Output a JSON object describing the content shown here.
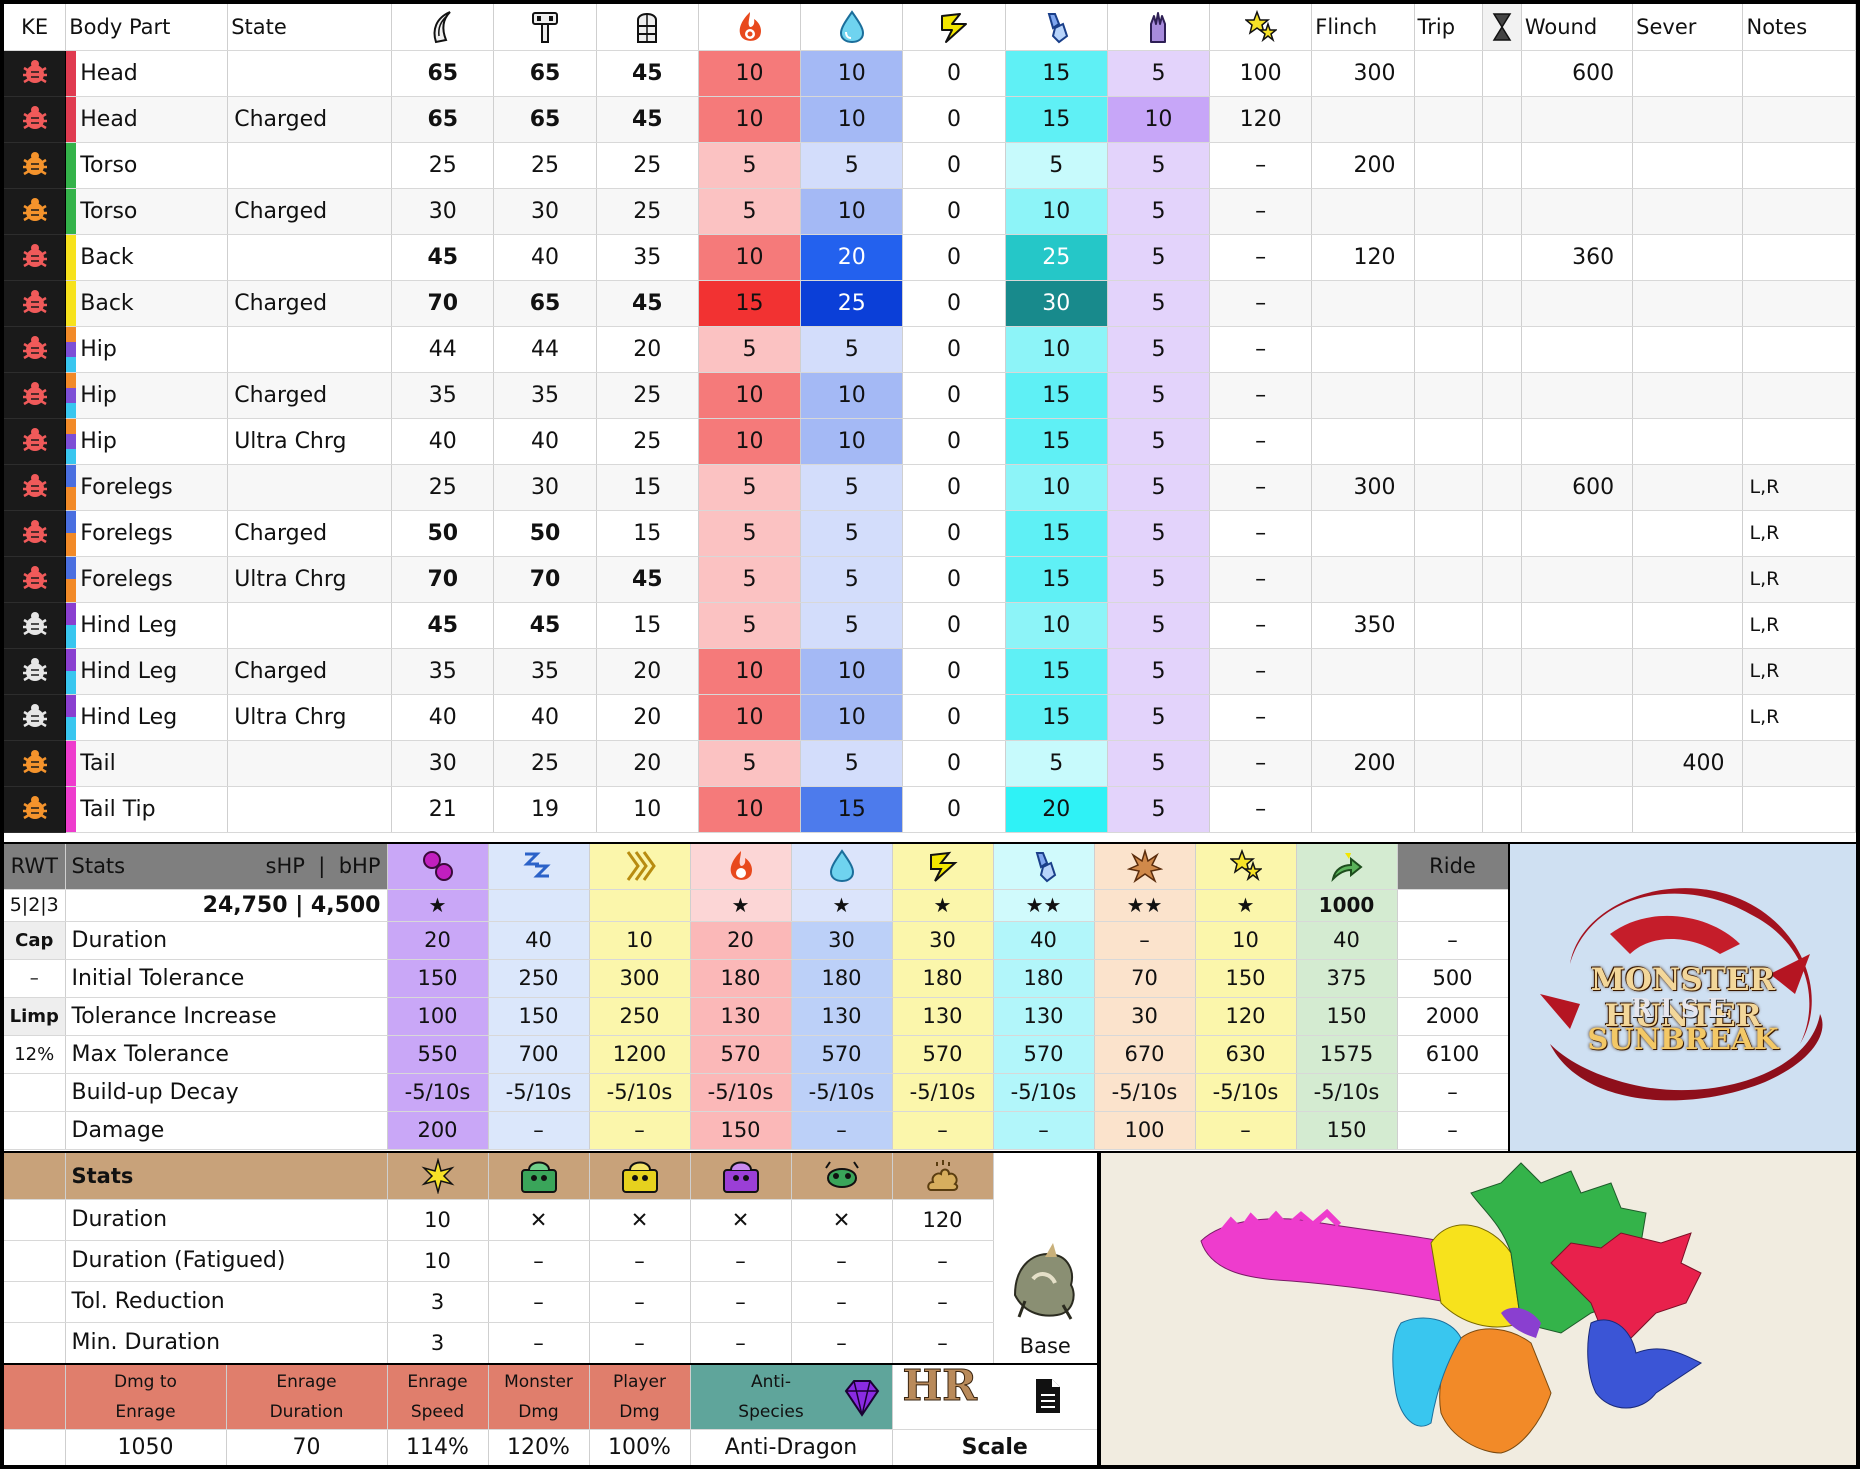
{
  "weakness": {
    "headers": {
      "ke": "KE",
      "part": "Body Part",
      "state": "State",
      "flinch": "Flinch",
      "trip": "Trip",
      "wound": "Wound",
      "sever": "Sever",
      "notes": "Notes"
    },
    "icon_names": [
      "sever-icon",
      "blunt-icon",
      "shot-icon",
      "fire-icon",
      "water-icon",
      "thunder-icon",
      "ice-icon",
      "dragon-icon",
      "stun-star-icon",
      "hourglass-icon"
    ],
    "rows": [
      {
        "part": "Head",
        "state": "",
        "v": [
          "65",
          "65",
          "45",
          "10",
          "10",
          "0",
          "15",
          "5",
          "100"
        ],
        "bold": [
          1,
          1,
          1
        ],
        "flinch": "300",
        "trip": "",
        "wound": "600",
        "sever": "",
        "notes": "",
        "bug": "red",
        "bar": [
          "#e03b50"
        ],
        "bg": [
          "#f57a7a",
          "#a4b9f5",
          "#fff",
          "#5ff0f5",
          "#e3d3fb"
        ]
      },
      {
        "part": "Head",
        "state": "Charged",
        "v": [
          "65",
          "65",
          "45",
          "10",
          "10",
          "0",
          "15",
          "10",
          "120"
        ],
        "bold": [
          1,
          1,
          1
        ],
        "flinch": "",
        "trip": "",
        "wound": "",
        "sever": "",
        "notes": "",
        "bug": "red",
        "bar": [
          "#e03b50"
        ],
        "bg": [
          "#f57a7a",
          "#a4b9f5",
          "#fff",
          "#5ff0f5",
          "#c7a6f8"
        ]
      },
      {
        "part": "Torso",
        "state": "",
        "v": [
          "25",
          "25",
          "25",
          "5",
          "5",
          "0",
          "5",
          "5",
          "–"
        ],
        "bold": [
          0,
          0,
          0
        ],
        "flinch": "200",
        "trip": "",
        "wound": "",
        "sever": "",
        "notes": "",
        "bug": "orange",
        "bar": [
          "#34b34a"
        ],
        "bg": [
          "#fbc2c2",
          "#d3ddfb",
          "#fff",
          "#c7fafc",
          "#e3d3fb"
        ]
      },
      {
        "part": "Torso",
        "state": "Charged",
        "v": [
          "30",
          "30",
          "25",
          "5",
          "10",
          "0",
          "10",
          "5",
          "–"
        ],
        "bold": [
          0,
          0,
          0
        ],
        "flinch": "",
        "trip": "",
        "wound": "",
        "sever": "",
        "notes": "",
        "bug": "orange",
        "bar": [
          "#34b34a"
        ],
        "bg": [
          "#fbc2c2",
          "#a4b9f5",
          "#fff",
          "#8df4f8",
          "#e3d3fb"
        ]
      },
      {
        "part": "Back",
        "state": "",
        "v": [
          "45",
          "40",
          "35",
          "10",
          "20",
          "0",
          "25",
          "5",
          "–"
        ],
        "bold": [
          1,
          0,
          0
        ],
        "flinch": "120",
        "trip": "",
        "wound": "360",
        "sever": "",
        "notes": "",
        "bug": "red",
        "bar": [
          "#f7e21c"
        ],
        "bg": [
          "#f57a7a",
          "#2361ee",
          "#fff",
          "#25c7c8",
          "#e3d3fb"
        ]
      },
      {
        "part": "Back",
        "state": "Charged",
        "v": [
          "70",
          "65",
          "45",
          "15",
          "25",
          "0",
          "30",
          "5",
          "–"
        ],
        "bold": [
          1,
          1,
          1
        ],
        "flinch": "",
        "trip": "",
        "wound": "",
        "sever": "",
        "notes": "",
        "bug": "red",
        "bar": [
          "#f7e21c"
        ],
        "bg": [
          "#f23232",
          "#0b3fd8",
          "#fff",
          "#188a8c",
          "#e3d3fb"
        ]
      },
      {
        "part": "Hip",
        "state": "",
        "v": [
          "44",
          "44",
          "20",
          "5",
          "5",
          "0",
          "10",
          "5",
          "–"
        ],
        "bold": [
          0,
          0,
          0
        ],
        "flinch": "",
        "trip": "",
        "wound": "",
        "sever": "",
        "notes": "",
        "bug": "red",
        "bar": [
          "#f28a28",
          "#7d4fd6",
          "#39c6ef"
        ],
        "bg": [
          "#fbc2c2",
          "#d3ddfb",
          "#fff",
          "#8df4f8",
          "#e3d3fb"
        ]
      },
      {
        "part": "Hip",
        "state": "Charged",
        "v": [
          "35",
          "35",
          "25",
          "10",
          "10",
          "0",
          "15",
          "5",
          "–"
        ],
        "bold": [
          0,
          0,
          0
        ],
        "flinch": "",
        "trip": "",
        "wound": "",
        "sever": "",
        "notes": "",
        "bug": "red",
        "bar": [
          "#f28a28",
          "#7d4fd6",
          "#39c6ef"
        ],
        "bg": [
          "#f57a7a",
          "#a4b9f5",
          "#fff",
          "#5ff0f5",
          "#e3d3fb"
        ]
      },
      {
        "part": "Hip",
        "state": "Ultra Chrg",
        "v": [
          "40",
          "40",
          "25",
          "10",
          "10",
          "0",
          "15",
          "5",
          "–"
        ],
        "bold": [
          0,
          0,
          0
        ],
        "flinch": "",
        "trip": "",
        "wound": "",
        "sever": "",
        "notes": "",
        "bug": "red",
        "bar": [
          "#f28a28",
          "#7d4fd6",
          "#39c6ef"
        ],
        "bg": [
          "#f57a7a",
          "#a4b9f5",
          "#fff",
          "#5ff0f5",
          "#e3d3fb"
        ]
      },
      {
        "part": "Forelegs",
        "state": "",
        "v": [
          "25",
          "30",
          "15",
          "5",
          "5",
          "0",
          "10",
          "5",
          "–"
        ],
        "bold": [
          0,
          0,
          0
        ],
        "flinch": "300",
        "trip": "",
        "wound": "600",
        "sever": "",
        "notes": "L,R",
        "bug": "red",
        "bar": [
          "#4a6fe0",
          "#f28a28"
        ],
        "bg": [
          "#fbc2c2",
          "#d3ddfb",
          "#fff",
          "#8df4f8",
          "#e3d3fb"
        ]
      },
      {
        "part": "Forelegs",
        "state": "Charged",
        "v": [
          "50",
          "50",
          "15",
          "5",
          "5",
          "0",
          "15",
          "5",
          "–"
        ],
        "bold": [
          1,
          1,
          0
        ],
        "flinch": "",
        "trip": "",
        "wound": "",
        "sever": "",
        "notes": "L,R",
        "bug": "red",
        "bar": [
          "#4a6fe0",
          "#f28a28"
        ],
        "bg": [
          "#fbc2c2",
          "#d3ddfb",
          "#fff",
          "#5ff0f5",
          "#e3d3fb"
        ]
      },
      {
        "part": "Forelegs",
        "state": "Ultra Chrg",
        "v": [
          "70",
          "70",
          "45",
          "5",
          "5",
          "0",
          "15",
          "5",
          "–"
        ],
        "bold": [
          1,
          1,
          1
        ],
        "flinch": "",
        "trip": "",
        "wound": "",
        "sever": "",
        "notes": "L,R",
        "bug": "red",
        "bar": [
          "#4a6fe0",
          "#f28a28"
        ],
        "bg": [
          "#fbc2c2",
          "#d3ddfb",
          "#fff",
          "#5ff0f5",
          "#e3d3fb"
        ]
      },
      {
        "part": "Hind Leg",
        "state": "",
        "v": [
          "45",
          "45",
          "15",
          "5",
          "5",
          "0",
          "10",
          "5",
          "–"
        ],
        "bold": [
          1,
          1,
          0
        ],
        "flinch": "350",
        "trip": "",
        "wound": "",
        "sever": "",
        "notes": "L,R",
        "bug": "white",
        "bar": [
          "#8a3fd0",
          "#39c6ef"
        ],
        "bg": [
          "#fbc2c2",
          "#d3ddfb",
          "#fff",
          "#8df4f8",
          "#e3d3fb"
        ]
      },
      {
        "part": "Hind Leg",
        "state": "Charged",
        "v": [
          "35",
          "35",
          "20",
          "10",
          "10",
          "0",
          "15",
          "5",
          "–"
        ],
        "bold": [
          0,
          0,
          0
        ],
        "flinch": "",
        "trip": "",
        "wound": "",
        "sever": "",
        "notes": "L,R",
        "bug": "white",
        "bar": [
          "#8a3fd0",
          "#39c6ef"
        ],
        "bg": [
          "#f57a7a",
          "#a4b9f5",
          "#fff",
          "#5ff0f5",
          "#e3d3fb"
        ]
      },
      {
        "part": "Hind Leg",
        "state": "Ultra Chrg",
        "v": [
          "40",
          "40",
          "20",
          "10",
          "10",
          "0",
          "15",
          "5",
          "–"
        ],
        "bold": [
          0,
          0,
          0
        ],
        "flinch": "",
        "trip": "",
        "wound": "",
        "sever": "",
        "notes": "L,R",
        "bug": "white",
        "bar": [
          "#8a3fd0",
          "#39c6ef"
        ],
        "bg": [
          "#f57a7a",
          "#a4b9f5",
          "#fff",
          "#5ff0f5",
          "#e3d3fb"
        ]
      },
      {
        "part": "Tail",
        "state": "",
        "v": [
          "30",
          "25",
          "20",
          "5",
          "5",
          "0",
          "5",
          "5",
          "–"
        ],
        "bold": [
          0,
          0,
          0
        ],
        "flinch": "200",
        "trip": "",
        "wound": "",
        "sever": "400",
        "notes": "",
        "bug": "orange",
        "bar": [
          "#ee3ccd"
        ],
        "bg": [
          "#fbc2c2",
          "#d3ddfb",
          "#fff",
          "#c7fafc",
          "#e3d3fb"
        ]
      },
      {
        "part": "Tail Tip",
        "state": "",
        "v": [
          "21",
          "19",
          "10",
          "10",
          "15",
          "0",
          "20",
          "5",
          "–"
        ],
        "bold": [
          0,
          0,
          0
        ],
        "flinch": "",
        "trip": "",
        "wound": "",
        "sever": "",
        "notes": "",
        "bug": "orange",
        "bar": [
          "#ee3ccd"
        ],
        "bg": [
          "#f57a7a",
          "#4d7bec",
          "#fff",
          "#2ff2f6",
          "#e3d3fb"
        ]
      }
    ]
  },
  "status": {
    "header": {
      "rwt": "RWT",
      "stats": "Stats",
      "hp": "sHP  |  bHP",
      "ride": "Ride"
    },
    "icon_names": [
      "poison-icon",
      "sleep-icon",
      "paralysis-icon",
      "fireblight-icon",
      "waterblight-icon",
      "thunderblight-icon",
      "iceblight-icon",
      "blast-icon",
      "stun-icon",
      "exhaust-icon"
    ],
    "rwt": "5|2|3",
    "hp_value": "24,750 | 4,500",
    "ratings": [
      "★",
      "",
      "",
      "★",
      "★",
      "★",
      "★★",
      "★★",
      "★",
      "1000",
      ""
    ],
    "side": [
      "Cap",
      "–",
      "Limp",
      "12%",
      ""
    ],
    "rows": [
      {
        "label": "Duration",
        "v": [
          "20",
          "40",
          "10",
          "20",
          "30",
          "30",
          "40",
          "–",
          "10",
          "40",
          "–"
        ]
      },
      {
        "label": "Initial Tolerance",
        "v": [
          "150",
          "250",
          "300",
          "180",
          "180",
          "180",
          "180",
          "70",
          "150",
          "375",
          "500"
        ]
      },
      {
        "label": "Tolerance Increase",
        "v": [
          "100",
          "150",
          "250",
          "130",
          "130",
          "130",
          "130",
          "30",
          "120",
          "150",
          "2000"
        ]
      },
      {
        "label": "Max Tolerance",
        "v": [
          "550",
          "700",
          "1200",
          "570",
          "570",
          "570",
          "570",
          "670",
          "630",
          "1575",
          "6100"
        ]
      },
      {
        "label": "Build-up Decay",
        "v": [
          "-5/10s",
          "-5/10s",
          "-5/10s",
          "-5/10s",
          "-5/10s",
          "-5/10s",
          "-5/10s",
          "-5/10s",
          "-5/10s",
          "-5/10s",
          "–"
        ]
      },
      {
        "label": "Damage",
        "v": [
          "200",
          "–",
          "–",
          "150",
          "–",
          "–",
          "–",
          "100",
          "–",
          "150",
          "–"
        ]
      }
    ]
  },
  "traps": {
    "header": "Stats",
    "icon_names": [
      "flash-pod-icon",
      "shock-trap-icon",
      "pitfall-trap-icon",
      "tranq-trap-icon",
      "sonic-icon",
      "dung-icon"
    ],
    "rows": [
      {
        "label": "Duration",
        "v": [
          "10",
          "✕",
          "✕",
          "✕",
          "✕",
          "120"
        ]
      },
      {
        "label": "Duration (Fatigued)",
        "v": [
          "10",
          "–",
          "–",
          "–",
          "–",
          "–"
        ]
      },
      {
        "label": "Tol. Reduction",
        "v": [
          "3",
          "–",
          "–",
          "–",
          "–",
          "–"
        ]
      },
      {
        "label": "Min. Duration",
        "v": [
          "3",
          "–",
          "–",
          "–",
          "–",
          "–"
        ]
      }
    ],
    "base_label": "Base"
  },
  "enrage": {
    "headers": [
      "Dmg to\nEnrage",
      "Enrage\nDuration",
      "Enrage\nSpeed",
      "Monster\nDmg",
      "Player\nDmg"
    ],
    "values": [
      "1050",
      "70",
      "114%",
      "120%",
      "100%"
    ],
    "anti_label": "Anti-\nSpecies",
    "anti_value": "Anti-Dragon",
    "hr": "HR",
    "scale": "Scale"
  },
  "logo": {
    "line1": "MONSTER HUNTER",
    "line2": "RISE",
    "line3": "SUNBREAK"
  },
  "colors": {
    "ke_bg": "#1a1a1a",
    "bug_red": "#f05a5a",
    "bug_orange": "#f4932c",
    "bug_white": "#e6e6e6"
  }
}
